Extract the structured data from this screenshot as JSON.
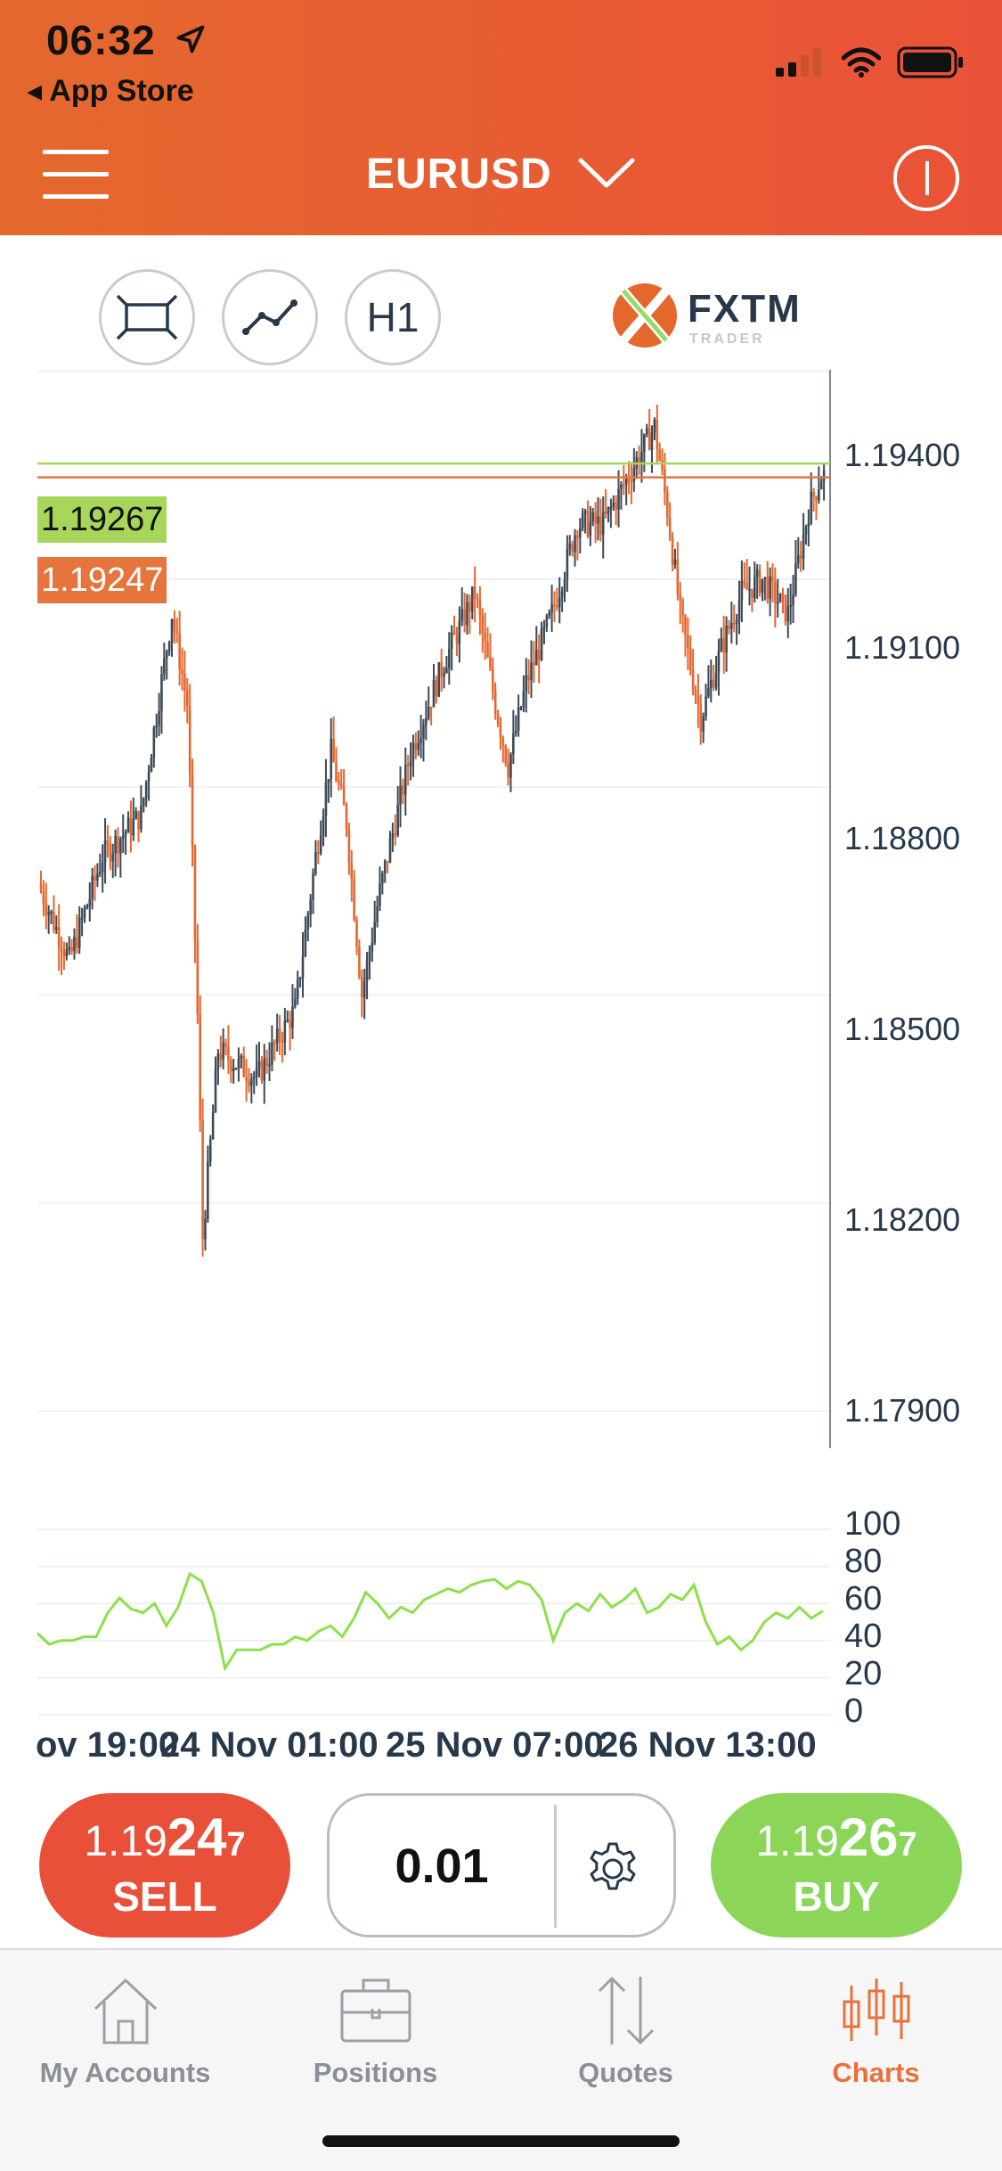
{
  "status_bar": {
    "time": "06:32",
    "back_label": "App Store"
  },
  "header": {
    "symbol": "EURUSD",
    "menu_icon": "hamburger-icon",
    "info_icon": "info-icon"
  },
  "toolbar": {
    "timeframe": "H1",
    "brand": "FXTM",
    "brand_sub": "TRADER"
  },
  "colors": {
    "header": "#e85a33",
    "bull": "#3c4a57",
    "bear": "#e4672e",
    "sell": "#e8503a",
    "buy": "#8bd659",
    "oscillator": "#8ee04a",
    "active_tab": "#e8713b"
  },
  "price_tags": {
    "buy": "1.19267",
    "sell": "1.19247"
  },
  "chart_data": {
    "type": "candlestick",
    "y_ticks": [
      "1.19400",
      "1.19100",
      "1.18800",
      "1.18500",
      "1.18200",
      "1.17900"
    ],
    "ylim": [
      1.1785,
      1.1955
    ],
    "x_labels": [
      "ov 19:00",
      "24 Nov 01:00",
      "25 Nov 07:00",
      "26 Nov 13:00"
    ],
    "buy_line": 1.19267,
    "sell_line": 1.19247,
    "oscillator_ticks": [
      "100",
      "80",
      "60",
      "40",
      "20",
      "0"
    ],
    "oscillator_range": [
      0,
      100
    ],
    "oscillator_values": [
      44,
      38,
      40,
      40,
      42,
      42,
      55,
      63,
      57,
      55,
      60,
      48,
      58,
      76,
      72,
      55,
      25,
      35,
      35,
      35,
      38,
      38,
      42,
      40,
      45,
      48,
      42,
      52,
      66,
      60,
      52,
      58,
      55,
      62,
      65,
      68,
      66,
      70,
      72,
      73,
      68,
      72,
      70,
      62,
      40,
      55,
      60,
      56,
      65,
      58,
      62,
      68,
      55,
      58,
      65,
      62,
      70,
      50,
      38,
      42,
      35,
      40,
      50,
      55,
      52,
      58,
      52,
      56
    ]
  },
  "trade": {
    "sell": {
      "price_prefix": "1.19",
      "price_big": "24",
      "price_pip": "7",
      "label": "SELL"
    },
    "buy": {
      "price_prefix": "1.19",
      "price_big": "26",
      "price_pip": "7",
      "label": "BUY"
    },
    "lot_size": "0.01"
  },
  "tabs": [
    {
      "label": "My Accounts",
      "icon": "home-icon"
    },
    {
      "label": "Positions",
      "icon": "briefcase-icon"
    },
    {
      "label": "Quotes",
      "icon": "quotes-arrows-icon"
    },
    {
      "label": "Charts",
      "icon": "candlestick-chart-icon"
    }
  ]
}
